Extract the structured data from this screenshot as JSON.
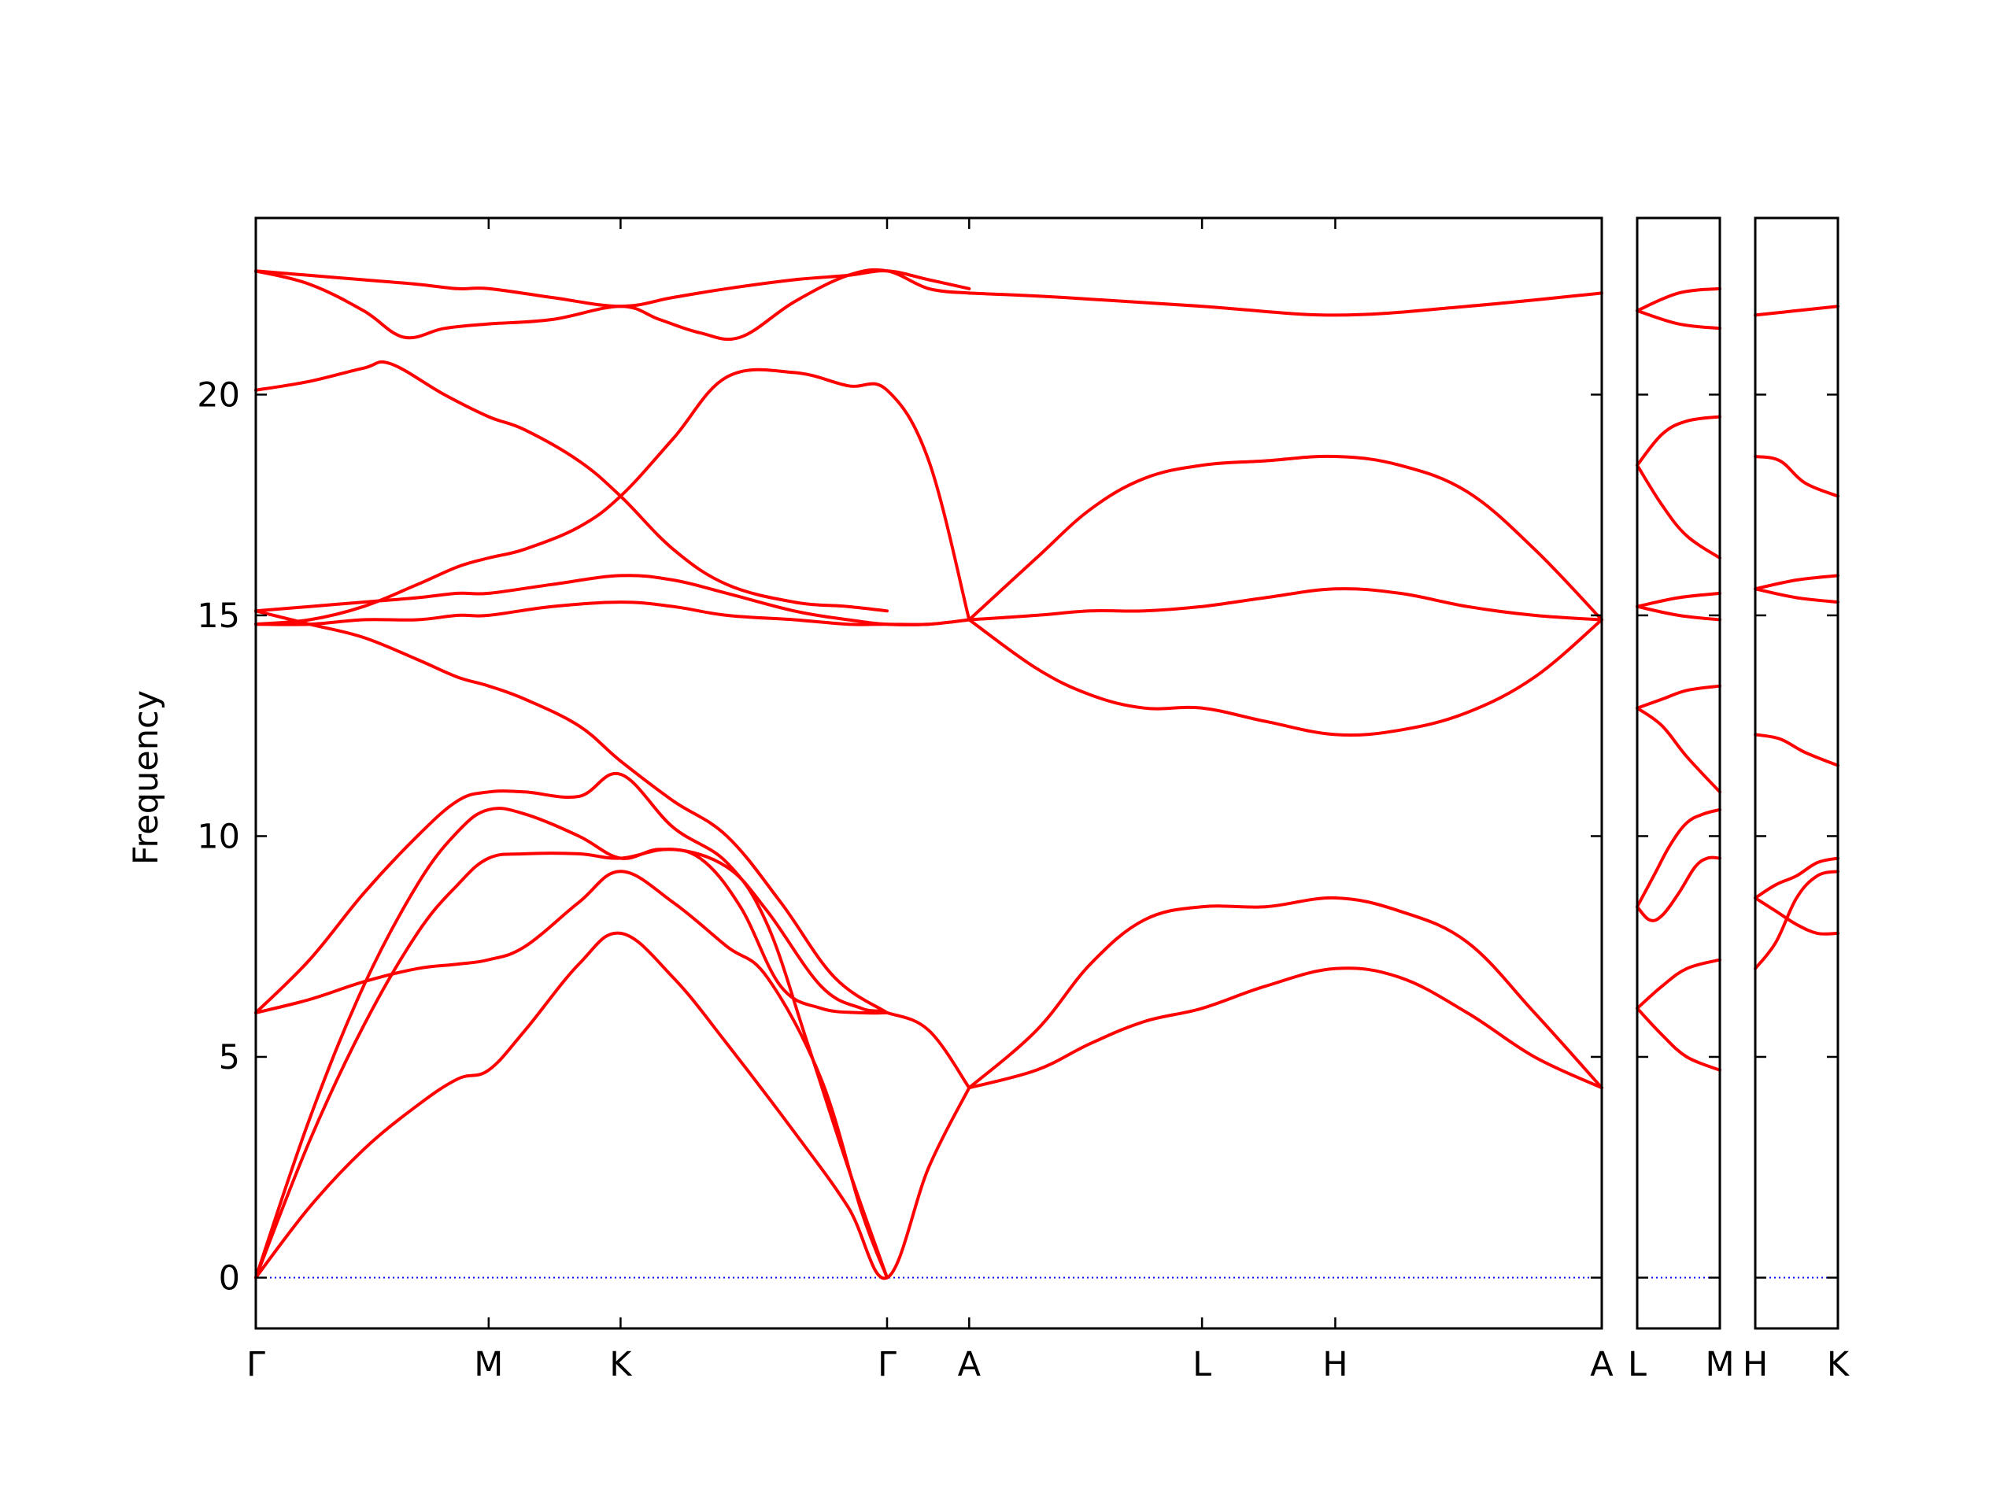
{
  "chart_data": {
    "type": "line",
    "title": "",
    "xlabel": "",
    "ylabel": "Frequency",
    "ylim": [
      -1.15,
      24.0
    ],
    "yticks": [
      0,
      5,
      10,
      15,
      20
    ],
    "grid": false,
    "legend": "none",
    "colors": {
      "bands": "#ff0000",
      "zero_line": "#0000ff",
      "frame": "#000000"
    },
    "panels": [
      {
        "name": "main",
        "xlim": [
          0,
          1
        ],
        "ticks": [
          {
            "label": "Γ",
            "x": 0.0
          },
          {
            "label": "M",
            "x": 0.173
          },
          {
            "label": "K",
            "x": 0.271
          },
          {
            "label": "Γ",
            "x": 0.469
          },
          {
            "label": "A",
            "x": 0.53
          },
          {
            "label": "L",
            "x": 0.703
          },
          {
            "label": "H",
            "x": 0.802
          },
          {
            "label": "A",
            "x": 1.0
          }
        ],
        "series": [
          {
            "x": [
              0,
              0.04,
              0.08,
              0.12,
              0.15,
              0.173,
              0.2,
              0.24,
              0.271,
              0.31,
              0.35,
              0.4,
              0.44,
              0.469,
              0.5,
              0.53
            ],
            "values": [
              0,
              1.6,
              2.9,
              3.9,
              4.5,
              4.7,
              5.6,
              7.1,
              7.8,
              6.8,
              5.3,
              3.3,
              1.6,
              0,
              2.5,
              4.3
            ]
          },
          {
            "x": [
              0,
              0.04,
              0.08,
              0.12,
              0.15,
              0.173,
              0.2,
              0.24,
              0.271,
              0.31,
              0.35,
              0.38,
              0.42,
              0.45,
              0.469,
              0.5,
              0.53
            ],
            "values": [
              0,
              3.1,
              5.7,
              7.8,
              8.9,
              9.5,
              9.6,
              9.6,
              9.5,
              9.7,
              9.3,
              8.3,
              6.6,
              6.1,
              6.0,
              5.6,
              4.3
            ]
          },
          {
            "x": [
              0,
              0.04,
              0.08,
              0.12,
              0.15,
              0.173,
              0.2,
              0.24,
              0.271,
              0.3,
              0.33,
              0.36,
              0.39,
              0.42,
              0.45,
              0.469
            ],
            "values": [
              0,
              3.6,
              6.6,
              8.9,
              10.1,
              10.6,
              10.5,
              10.0,
              9.5,
              9.7,
              9.5,
              8.4,
              6.6,
              6.1,
              6.0,
              6.0
            ]
          },
          {
            "x": [
              0,
              0.04,
              0.08,
              0.12,
              0.15,
              0.173,
              0.2,
              0.24,
              0.271,
              0.31,
              0.35,
              0.38,
              0.42,
              0.45,
              0.469
            ],
            "values": [
              6.0,
              6.3,
              6.7,
              7.0,
              7.1,
              7.2,
              7.5,
              8.5,
              9.2,
              8.5,
              7.5,
              6.8,
              4.5,
              1.5,
              0
            ]
          },
          {
            "x": [
              0,
              0.04,
              0.08,
              0.12,
              0.15,
              0.173,
              0.2,
              0.24,
              0.271,
              0.31,
              0.35,
              0.38,
              0.41,
              0.44,
              0.469
            ],
            "values": [
              6.0,
              7.2,
              8.7,
              10.0,
              10.8,
              11.0,
              11.0,
              10.9,
              11.4,
              10.2,
              9.4,
              8.0,
              5.3,
              2.5,
              0
            ]
          },
          {
            "x": [
              0,
              0.04,
              0.08,
              0.12,
              0.15,
              0.173,
              0.2,
              0.24,
              0.271,
              0.31,
              0.35,
              0.39,
              0.43,
              0.469
            ],
            "values": [
              15.1,
              14.8,
              14.5,
              14.0,
              13.6,
              13.4,
              13.1,
              12.5,
              11.7,
              10.8,
              10.0,
              8.5,
              6.8,
              6.0
            ]
          },
          {
            "x": [
              0,
              0.04,
              0.08,
              0.12,
              0.15,
              0.173,
              0.22,
              0.271,
              0.31,
              0.35,
              0.4,
              0.44,
              0.469,
              0.5,
              0.53
            ],
            "values": [
              15.1,
              15.2,
              15.3,
              15.4,
              15.5,
              15.5,
              15.7,
              15.9,
              15.8,
              15.5,
              15.1,
              14.9,
              14.8,
              14.8,
              14.9
            ]
          },
          {
            "x": [
              0,
              0.04,
              0.08,
              0.12,
              0.15,
              0.173,
              0.22,
              0.271,
              0.31,
              0.35,
              0.4,
              0.44,
              0.469,
              0.5,
              0.53
            ],
            "values": [
              14.8,
              14.8,
              14.9,
              14.9,
              15.0,
              15.0,
              15.2,
              15.3,
              15.2,
              15.0,
              14.9,
              14.8,
              14.8,
              14.8,
              14.9
            ]
          },
          {
            "x": [
              0,
              0.04,
              0.08,
              0.12,
              0.15,
              0.173,
              0.2,
              0.24,
              0.271,
              0.31,
              0.35,
              0.4,
              0.44,
              0.469,
              0.5,
              0.53
            ],
            "values": [
              14.8,
              14.9,
              15.2,
              15.7,
              16.1,
              16.3,
              16.5,
              17.0,
              17.7,
              19.0,
              20.4,
              20.5,
              20.2,
              20.1,
              18.5,
              14.9
            ]
          },
          {
            "x": [
              0,
              0.04,
              0.08,
              0.1,
              0.14,
              0.173,
              0.2,
              0.24,
              0.271,
              0.31,
              0.35,
              0.4,
              0.44,
              0.469
            ],
            "values": [
              20.1,
              20.3,
              20.6,
              20.7,
              20.0,
              19.5,
              19.2,
              18.5,
              17.7,
              16.5,
              15.7,
              15.3,
              15.2,
              15.1
            ]
          },
          {
            "x": [
              0,
              0.04,
              0.08,
              0.11,
              0.14,
              0.173,
              0.22,
              0.271,
              0.3,
              0.33,
              0.36,
              0.4,
              0.44,
              0.469,
              0.5,
              0.53
            ],
            "values": [
              22.8,
              22.5,
              21.9,
              21.3,
              21.5,
              21.6,
              21.7,
              22.0,
              21.7,
              21.4,
              21.3,
              22.1,
              22.7,
              22.8,
              22.4,
              22.3
            ]
          },
          {
            "x": [
              0,
              0.04,
              0.08,
              0.12,
              0.15,
              0.173,
              0.22,
              0.271,
              0.31,
              0.35,
              0.4,
              0.44,
              0.469,
              0.5,
              0.53
            ],
            "values": [
              22.8,
              22.7,
              22.6,
              22.5,
              22.4,
              22.4,
              22.2,
              22.0,
              22.2,
              22.4,
              22.6,
              22.7,
              22.8,
              22.6,
              22.4
            ]
          },
          {
            "x": [
              0.53,
              0.58,
              0.62,
              0.66,
              0.703,
              0.75,
              0.802,
              0.85,
              0.9,
              0.95,
              1.0
            ],
            "values": [
              4.3,
              4.7,
              5.3,
              5.8,
              6.1,
              6.6,
              7.0,
              6.8,
              6.0,
              5.0,
              4.3
            ]
          },
          {
            "x": [
              0.53,
              0.58,
              0.62,
              0.66,
              0.703,
              0.75,
              0.802,
              0.85,
              0.9,
              0.95,
              1.0
            ],
            "values": [
              4.3,
              5.6,
              7.1,
              8.1,
              8.4,
              8.4,
              8.6,
              8.3,
              7.6,
              6.0,
              4.3
            ]
          },
          {
            "x": [
              0.53,
              0.58,
              0.62,
              0.66,
              0.703,
              0.75,
              0.802,
              0.85,
              0.9,
              0.95,
              1.0
            ],
            "values": [
              14.9,
              13.8,
              13.2,
              12.9,
              12.9,
              12.6,
              12.3,
              12.4,
              12.8,
              13.6,
              14.9
            ]
          },
          {
            "x": [
              0.53,
              0.58,
              0.62,
              0.66,
              0.703,
              0.75,
              0.802,
              0.85,
              0.9,
              0.95,
              1.0
            ],
            "values": [
              14.9,
              15.0,
              15.1,
              15.1,
              15.2,
              15.4,
              15.6,
              15.5,
              15.2,
              15.0,
              14.9
            ]
          },
          {
            "x": [
              0.53,
              0.58,
              0.62,
              0.66,
              0.703,
              0.75,
              0.802,
              0.85,
              0.9,
              0.95,
              1.0
            ],
            "values": [
              14.9,
              16.3,
              17.4,
              18.1,
              18.4,
              18.5,
              18.6,
              18.4,
              17.8,
              16.5,
              14.9
            ]
          },
          {
            "x": [
              0.53,
              0.6,
              0.703,
              0.802,
              0.9,
              1.0
            ],
            "values": [
              22.3,
              22.2,
              22.0,
              21.8,
              22.0,
              22.3
            ]
          }
        ]
      },
      {
        "name": "L-M",
        "xlim": [
          0,
          1
        ],
        "ticks": [
          {
            "label": "L",
            "x": 0.0
          },
          {
            "label": "M",
            "x": 1.0
          }
        ],
        "series": [
          {
            "x": [
              0,
              0.3,
              0.6,
              1.0
            ],
            "values": [
              6.1,
              5.5,
              5.0,
              4.7
            ]
          },
          {
            "x": [
              0,
              0.3,
              0.6,
              1.0
            ],
            "values": [
              6.1,
              6.6,
              7.0,
              7.2
            ]
          },
          {
            "x": [
              0,
              0.15,
              0.3,
              0.5,
              0.7,
              0.85,
              1.0
            ],
            "values": [
              8.4,
              8.1,
              8.2,
              8.7,
              9.3,
              9.5,
              9.5
            ]
          },
          {
            "x": [
              0,
              0.2,
              0.4,
              0.6,
              0.8,
              1.0
            ],
            "values": [
              8.4,
              9.1,
              9.8,
              10.3,
              10.5,
              10.6
            ]
          },
          {
            "x": [
              0,
              0.3,
              0.6,
              1.0
            ],
            "values": [
              12.9,
              12.5,
              11.8,
              11.0
            ]
          },
          {
            "x": [
              0,
              0.3,
              0.6,
              1.0
            ],
            "values": [
              12.9,
              13.1,
              13.3,
              13.4
            ]
          },
          {
            "x": [
              0,
              0.5,
              1.0
            ],
            "values": [
              15.2,
              15.0,
              14.9
            ]
          },
          {
            "x": [
              0,
              0.5,
              1.0
            ],
            "values": [
              15.2,
              15.4,
              15.5
            ]
          },
          {
            "x": [
              0,
              0.3,
              0.6,
              1.0
            ],
            "values": [
              18.4,
              17.5,
              16.8,
              16.3
            ]
          },
          {
            "x": [
              0,
              0.3,
              0.6,
              1.0
            ],
            "values": [
              18.4,
              19.1,
              19.4,
              19.5
            ]
          },
          {
            "x": [
              0,
              0.5,
              1.0
            ],
            "values": [
              21.9,
              21.6,
              21.5
            ]
          },
          {
            "x": [
              0,
              0.5,
              1.0
            ],
            "values": [
              21.9,
              22.3,
              22.4
            ]
          }
        ]
      },
      {
        "name": "H-K",
        "xlim": [
          0,
          1
        ],
        "ticks": [
          {
            "label": "H",
            "x": 0.0
          },
          {
            "label": "K",
            "x": 1.0
          }
        ],
        "series": [
          {
            "x": [
              0,
              0.25,
              0.5,
              0.75,
              1.0
            ],
            "values": [
              7.0,
              7.6,
              8.6,
              9.1,
              9.2
            ]
          },
          {
            "x": [
              0,
              0.25,
              0.5,
              0.75,
              1.0
            ],
            "values": [
              8.6,
              8.3,
              8.0,
              7.8,
              7.8
            ]
          },
          {
            "x": [
              0,
              0.25,
              0.5,
              0.75,
              1.0
            ],
            "values": [
              8.6,
              8.9,
              9.1,
              9.4,
              9.5
            ]
          },
          {
            "x": [
              0,
              0.3,
              0.6,
              1.0
            ],
            "values": [
              12.3,
              12.2,
              11.9,
              11.6
            ]
          },
          {
            "x": [
              0,
              0.5,
              1.0
            ],
            "values": [
              15.6,
              15.4,
              15.3
            ]
          },
          {
            "x": [
              0,
              0.5,
              1.0
            ],
            "values": [
              15.6,
              15.8,
              15.9
            ]
          },
          {
            "x": [
              0,
              0.3,
              0.6,
              1.0
            ],
            "values": [
              18.6,
              18.5,
              18.0,
              17.7
            ]
          },
          {
            "x": [
              0,
              0.5,
              1.0
            ],
            "values": [
              21.8,
              21.9,
              22.0
            ]
          }
        ]
      }
    ]
  }
}
